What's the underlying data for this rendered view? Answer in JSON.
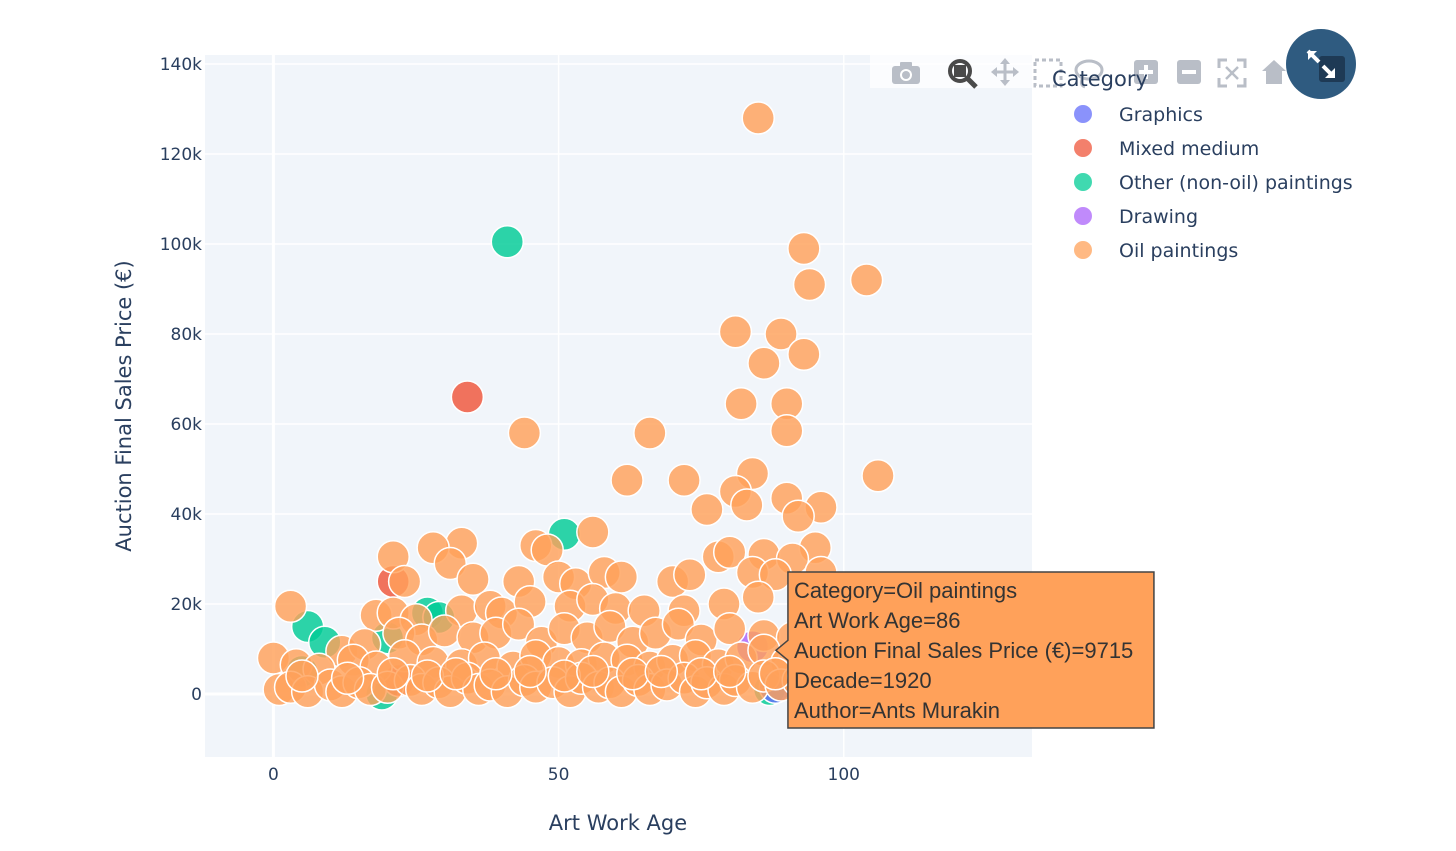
{
  "chart_data": {
    "type": "scatter",
    "title": "",
    "xlabel": "Art Work Age",
    "ylabel": "Auction Final Sales Price (€)",
    "xlim": [
      -12,
      133
    ],
    "ylim": [
      -14000,
      142000
    ],
    "xticks": [
      0,
      50,
      100
    ],
    "xtick_labels": [
      "0",
      "50",
      "100"
    ],
    "yticks": [
      0,
      20000,
      40000,
      60000,
      80000,
      100000,
      120000,
      140000
    ],
    "ytick_labels": [
      "0",
      "20k",
      "40k",
      "60k",
      "80k",
      "100k",
      "120k",
      "140k"
    ],
    "grid": true,
    "legend_position": "right",
    "legend_title": "Category",
    "series": [
      {
        "name": "Graphics",
        "color": "#636efa",
        "points": [
          [
            88,
            1500
          ]
        ]
      },
      {
        "name": "Mixed medium",
        "color": "#ef553b",
        "points": [
          [
            34,
            66000
          ],
          [
            21,
            25000
          ],
          [
            22,
            3000
          ]
        ]
      },
      {
        "name": "Other (non-oil) paintings",
        "color": "#00cc96",
        "points": [
          [
            41,
            100500
          ],
          [
            51,
            35500
          ],
          [
            6,
            15000
          ],
          [
            9,
            11500
          ],
          [
            27,
            18000
          ],
          [
            29,
            17000
          ],
          [
            20,
            12500
          ],
          [
            19,
            0
          ],
          [
            5,
            5000
          ],
          [
            87,
            1000
          ]
        ]
      },
      {
        "name": "Drawing",
        "color": "#ab63fa",
        "points": [
          [
            84,
            10500
          ]
        ]
      },
      {
        "name": "Oil paintings",
        "color": "#ffa15a",
        "points": [
          [
            85,
            128000
          ],
          [
            93,
            99000
          ],
          [
            94,
            91000
          ],
          [
            104,
            92000
          ],
          [
            81,
            80500
          ],
          [
            89,
            80000
          ],
          [
            93,
            75500
          ],
          [
            86,
            73500
          ],
          [
            82,
            64500
          ],
          [
            90,
            64500
          ],
          [
            90,
            58500
          ],
          [
            66,
            58000
          ],
          [
            44,
            58000
          ],
          [
            106,
            48500
          ],
          [
            62,
            47500
          ],
          [
            72,
            47500
          ],
          [
            84,
            49000
          ],
          [
            81,
            45000
          ],
          [
            83,
            42000
          ],
          [
            90,
            43500
          ],
          [
            96,
            41500
          ],
          [
            76,
            41000
          ],
          [
            92,
            39500
          ],
          [
            56,
            36000
          ],
          [
            95,
            32500
          ],
          [
            33,
            33500
          ],
          [
            28,
            32500
          ],
          [
            21,
            30500
          ],
          [
            46,
            33000
          ],
          [
            48,
            32000
          ],
          [
            31,
            29000
          ],
          [
            86,
            31000
          ],
          [
            78,
            30500
          ],
          [
            80,
            31500
          ],
          [
            91,
            30000
          ],
          [
            35,
            25500
          ],
          [
            23,
            25000
          ],
          [
            43,
            25000
          ],
          [
            50,
            26000
          ],
          [
            53,
            24500
          ],
          [
            58,
            27000
          ],
          [
            61,
            26000
          ],
          [
            70,
            25000
          ],
          [
            73,
            26500
          ],
          [
            84,
            27000
          ],
          [
            96,
            27000
          ],
          [
            88,
            26500
          ],
          [
            3,
            19500
          ],
          [
            18,
            17500
          ],
          [
            21,
            18000
          ],
          [
            25,
            16500
          ],
          [
            33,
            18500
          ],
          [
            38,
            19500
          ],
          [
            40,
            18000
          ],
          [
            45,
            20500
          ],
          [
            52,
            19500
          ],
          [
            56,
            21000
          ],
          [
            60,
            19000
          ],
          [
            65,
            18500
          ],
          [
            72,
            18500
          ],
          [
            79,
            20000
          ],
          [
            85,
            21500
          ],
          [
            94,
            20500
          ],
          [
            12,
            9500
          ],
          [
            16,
            11000
          ],
          [
            22,
            13500
          ],
          [
            26,
            12000
          ],
          [
            30,
            14000
          ],
          [
            35,
            12500
          ],
          [
            39,
            13500
          ],
          [
            43,
            15500
          ],
          [
            47,
            11500
          ],
          [
            51,
            14500
          ],
          [
            55,
            12500
          ],
          [
            59,
            15000
          ],
          [
            63,
            11500
          ],
          [
            67,
            13500
          ],
          [
            71,
            15500
          ],
          [
            75,
            12000
          ],
          [
            80,
            14500
          ],
          [
            86,
            13000
          ],
          [
            91,
            12500
          ],
          [
            95,
            16500
          ],
          [
            0,
            8000
          ],
          [
            4,
            6500
          ],
          [
            8,
            5500
          ],
          [
            14,
            7500
          ],
          [
            18,
            6000
          ],
          [
            23,
            8500
          ],
          [
            28,
            7000
          ],
          [
            33,
            6500
          ],
          [
            37,
            8000
          ],
          [
            42,
            6000
          ],
          [
            46,
            8500
          ],
          [
            50,
            7000
          ],
          [
            54,
            6500
          ],
          [
            58,
            8000
          ],
          [
            62,
            7500
          ],
          [
            66,
            6000
          ],
          [
            70,
            7500
          ],
          [
            74,
            8500
          ],
          [
            78,
            6500
          ],
          [
            82,
            8000
          ],
          [
            86,
            9715
          ],
          [
            90,
            7000
          ],
          [
            94,
            6500
          ],
          [
            1,
            1000
          ],
          [
            3,
            1500
          ],
          [
            6,
            500
          ],
          [
            10,
            2000
          ],
          [
            12,
            500
          ],
          [
            15,
            2500
          ],
          [
            17,
            1000
          ],
          [
            20,
            1500
          ],
          [
            24,
            3000
          ],
          [
            26,
            1000
          ],
          [
            29,
            2500
          ],
          [
            31,
            500
          ],
          [
            34,
            3500
          ],
          [
            36,
            1000
          ],
          [
            38,
            2000
          ],
          [
            41,
            500
          ],
          [
            44,
            3000
          ],
          [
            46,
            1500
          ],
          [
            49,
            2500
          ],
          [
            52,
            500
          ],
          [
            54,
            3500
          ],
          [
            57,
            1500
          ],
          [
            59,
            2500
          ],
          [
            61,
            500
          ],
          [
            64,
            3000
          ],
          [
            66,
            1000
          ],
          [
            69,
            2000
          ],
          [
            72,
            3500
          ],
          [
            74,
            500
          ],
          [
            76,
            2500
          ],
          [
            79,
            1000
          ],
          [
            81,
            3000
          ],
          [
            84,
            1500
          ],
          [
            86,
            4000
          ],
          [
            89,
            2000
          ],
          [
            92,
            3000
          ],
          [
            95,
            1000
          ],
          [
            5,
            4000
          ],
          [
            13,
            3500
          ],
          [
            21,
            4500
          ],
          [
            27,
            4000
          ],
          [
            32,
            4500
          ],
          [
            39,
            4500
          ],
          [
            45,
            5000
          ],
          [
            51,
            4000
          ],
          [
            56,
            5000
          ],
          [
            63,
            4500
          ],
          [
            68,
            5000
          ],
          [
            75,
            4500
          ],
          [
            80,
            5000
          ],
          [
            88,
            4500
          ],
          [
            93,
            4000
          ]
        ]
      }
    ],
    "tooltip": {
      "lines": [
        "Category=Oil paintings",
        "Art Work Age=86",
        "Auction Final Sales Price (€)=9715",
        "Decade=1920",
        "Author=Ants Murakin"
      ],
      "anchor": [
        86,
        9715
      ],
      "color": "#ffa15a"
    }
  },
  "modebar": {
    "icons": [
      "camera-icon",
      "zoom-icon",
      "pan-icon",
      "box-select-icon",
      "lasso-select-icon",
      "zoom-in-icon",
      "zoom-out-icon",
      "autoscale-icon",
      "reset-axes-icon"
    ],
    "active": "zoom-icon"
  },
  "collapse_button": {
    "icon": "collapse-icon",
    "color": "#2f5b80"
  }
}
